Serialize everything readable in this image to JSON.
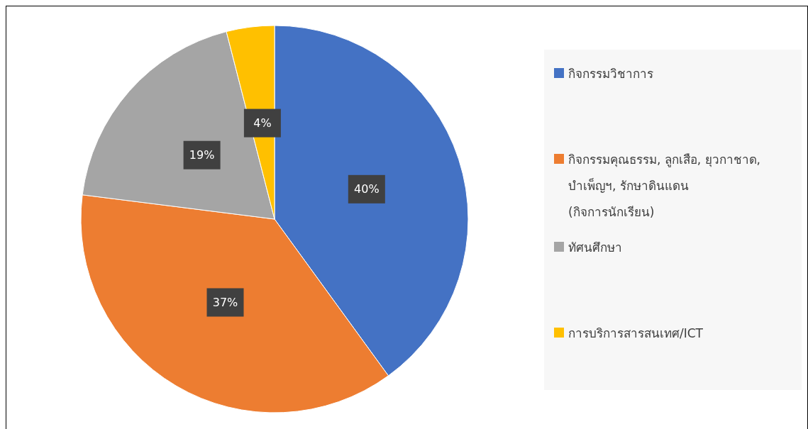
{
  "chart_data": {
    "type": "pie",
    "categories": [
      "กิจกรรมวิชาการ",
      "กิจกรรมคุณธรรม, ลูกเสือ,  ยุวกาชาด, บำเพ็ญฯ,  รักษาดินแดน (กิจการนักเรียน)",
      "ทัศนศึกษา",
      "การบริการสารสนเทศ/ICT"
    ],
    "values": [
      40,
      37,
      19,
      4
    ],
    "colors": [
      "#4472c4",
      "#ed7d31",
      "#a5a5a5",
      "#ffc000"
    ],
    "value_labels": [
      "40%",
      "37%",
      "19%",
      "4%"
    ],
    "legend": "right"
  }
}
